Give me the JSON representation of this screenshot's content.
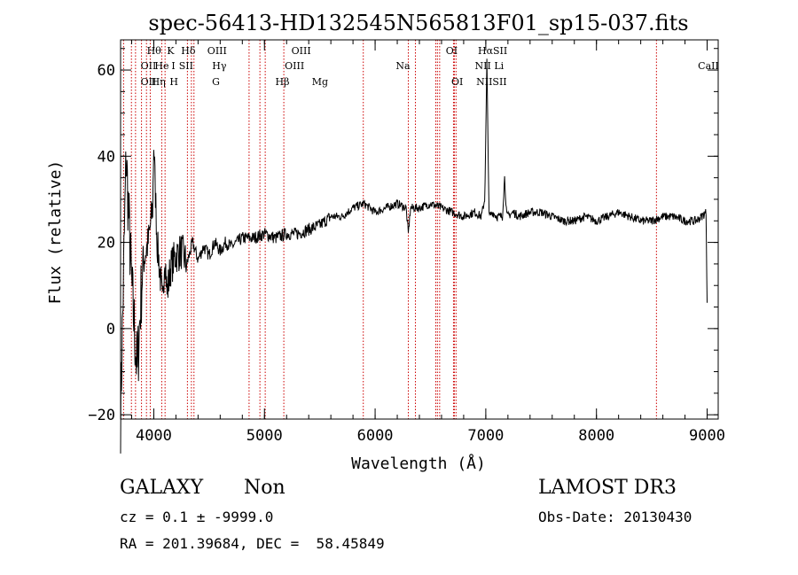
{
  "chart_data": {
    "type": "line",
    "title": "spec-56413-HD132545N565813F01_sp15-037.fits",
    "xlabel": "Wavelength (Å)",
    "ylabel": "Flux (relative)",
    "xlim": [
      3700,
      9100
    ],
    "ylim": [
      -21,
      67
    ],
    "xticks": [
      4000,
      5000,
      6000,
      7000,
      8000,
      9000
    ],
    "yticks": [
      -20,
      0,
      20,
      40,
      60
    ],
    "grid": false,
    "series": [
      {
        "name": "flux",
        "x": [
          3700,
          3750,
          3800,
          3850,
          3900,
          3950,
          3990,
          4000,
          4030,
          4060,
          4080,
          4100,
          4120,
          4150,
          4200,
          4250,
          4300,
          4350,
          4400,
          4450,
          4500,
          4550,
          4600,
          4650,
          4700,
          4800,
          4900,
          5000,
          5100,
          5200,
          5300,
          5400,
          5500,
          5600,
          5700,
          5800,
          5900,
          6000,
          6100,
          6200,
          6280,
          6300,
          6320,
          6400,
          6500,
          6600,
          6700,
          6800,
          6900,
          6960,
          6990,
          7000,
          7010,
          7030,
          7060,
          7100,
          7150,
          7170,
          7190,
          7250,
          7300,
          7400,
          7500,
          7600,
          7700,
          7800,
          7900,
          8000,
          8100,
          8200,
          8300,
          8400,
          8500,
          8600,
          8700,
          8800,
          8900,
          8950,
          8990,
          9000
        ],
        "values": [
          -20,
          40,
          10,
          -10,
          15,
          20,
          28,
          43,
          20,
          12,
          5,
          18,
          8,
          14,
          17,
          18,
          15,
          20,
          16,
          19,
          17,
          20,
          18,
          20,
          19,
          21,
          21,
          22,
          21,
          22,
          22,
          23,
          24,
          26,
          26,
          28,
          29,
          27,
          28,
          29,
          28,
          22,
          28,
          28,
          29,
          28,
          27,
          26,
          27,
          26,
          30,
          45,
          62,
          26,
          27,
          26,
          26,
          35,
          26,
          27,
          26,
          27,
          27,
          26,
          25,
          25,
          26,
          25,
          26,
          27,
          26,
          25,
          25,
          26,
          26,
          25,
          25,
          26,
          27,
          6
        ]
      }
    ],
    "lines": [
      {
        "label": "OII",
        "x": 3727
      },
      {
        "label": "Hθ",
        "x": 3798
      },
      {
        "label": "Hη",
        "x": 3835
      },
      {
        "label": "HeI",
        "x": 3889
      },
      {
        "label": "K",
        "x": 3934
      },
      {
        "label": "H",
        "x": 3968
      },
      {
        "label": "SII",
        "x": 4072
      },
      {
        "label": "Hδ",
        "x": 4102
      },
      {
        "label": "G",
        "x": 4304
      },
      {
        "label": "Hγ",
        "x": 4340
      },
      {
        "label": "OIII",
        "x": 4363
      },
      {
        "label": "Hβ",
        "x": 4861
      },
      {
        "label": "OIII",
        "x": 4959
      },
      {
        "label": "OIII",
        "x": 5007
      },
      {
        "label": "Mg",
        "x": 5175
      },
      {
        "label": "Na",
        "x": 5893
      },
      {
        "label": "OI",
        "x": 6300
      },
      {
        "label": "OI",
        "x": 6364
      },
      {
        "label": "NII",
        "x": 6548
      },
      {
        "label": "Hα",
        "x": 6563
      },
      {
        "label": "NII",
        "x": 6583
      },
      {
        "label": "Li",
        "x": 6708
      },
      {
        "label": "SII",
        "x": 6716
      },
      {
        "label": "SII",
        "x": 6731
      },
      {
        "label": "CaII",
        "x": 8542
      }
    ],
    "line_label_rows": [
      {
        "text": "OII",
        "row": 1,
        "x": 4000
      },
      {
        "text": "Hθ",
        "row": 0,
        "x": 4050
      },
      {
        "text": "K",
        "row": 0,
        "x": 4200
      },
      {
        "text": "Hδ",
        "row": 0,
        "x": 4360
      },
      {
        "text": "OIII",
        "row": 0,
        "x": 4620
      },
      {
        "text": "He",
        "row": 1,
        "x": 4120
      },
      {
        "text": "I",
        "row": 1,
        "x": 4225
      },
      {
        "text": "SII",
        "row": 1,
        "x": 4340
      },
      {
        "text": "Hγ",
        "row": 1,
        "x": 4640
      },
      {
        "text": "OII",
        "row": 2,
        "x": 4000
      },
      {
        "text": "Hη",
        "row": 2,
        "x": 4090
      },
      {
        "text": "H",
        "row": 2,
        "x": 4230
      },
      {
        "text": "G",
        "row": 2,
        "x": 4610
      },
      {
        "text": "OIII",
        "row": 0,
        "x": 5380
      },
      {
        "text": "OIII",
        "row": 1,
        "x": 5320
      },
      {
        "text": "Hβ",
        "row": 2,
        "x": 5210
      },
      {
        "text": "Mg",
        "row": 2,
        "x": 5550
      },
      {
        "text": "Na",
        "row": 1,
        "x": 6300
      },
      {
        "text": "OI",
        "row": 0,
        "x": 6740
      },
      {
        "text": "OI",
        "row": 2,
        "x": 6790
      },
      {
        "text": "HαSII",
        "row": 0,
        "x": 7110
      },
      {
        "text": "NII Li",
        "row": 1,
        "x": 7080
      },
      {
        "text": "NIISII",
        "row": 2,
        "x": 7100
      },
      {
        "text": "CaII",
        "row": 1,
        "x": 9060
      }
    ]
  },
  "info": {
    "object_class": "GALAXY",
    "subclass": "Non",
    "survey": "LAMOST DR3",
    "cz_line": "cz = 0.1 ± -9999.0",
    "obs_date": "Obs-Date: 20130430",
    "coords_line": "RA = 201.39684, DEC =  58.45849"
  }
}
